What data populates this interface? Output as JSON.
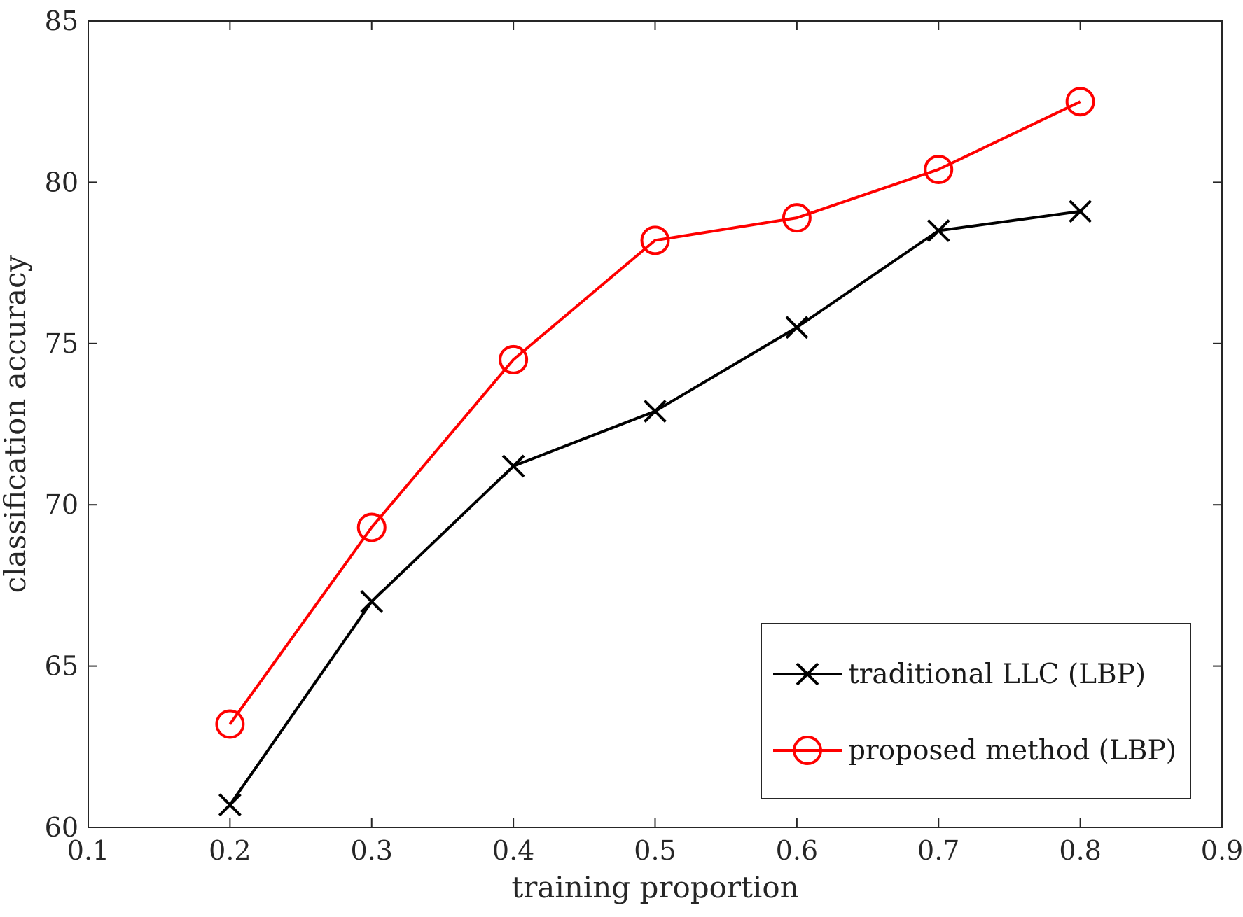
{
  "chart_data": {
    "type": "line",
    "title": "",
    "xlabel": "training proportion",
    "ylabel": "classification accuracy",
    "xlim": [
      0.1,
      0.9
    ],
    "ylim": [
      60,
      85
    ],
    "xticks": [
      0.1,
      0.2,
      0.3,
      0.4,
      0.5,
      0.6,
      0.7,
      0.8,
      0.9
    ],
    "yticks": [
      60,
      65,
      70,
      75,
      80,
      85
    ],
    "xtick_labels": [
      "0.1",
      "0.2",
      "0.3",
      "0.4",
      "0.5",
      "0.6",
      "0.7",
      "0.8",
      "0.9"
    ],
    "ytick_labels": [
      "60",
      "65",
      "70",
      "75",
      "80",
      "85"
    ],
    "grid": false,
    "legend_position": "bottom-right",
    "x": [
      0.2,
      0.3,
      0.4,
      0.5,
      0.6,
      0.7,
      0.8
    ],
    "series": [
      {
        "name": "traditional LLC (LBP)",
        "marker": "x",
        "color": "#000000",
        "values": [
          60.7,
          67.0,
          71.2,
          72.9,
          75.5,
          78.5,
          79.1
        ]
      },
      {
        "name": "proposed method (LBP)",
        "marker": "o",
        "color": "#ff0000",
        "values": [
          63.2,
          69.3,
          74.5,
          78.2,
          78.9,
          80.4,
          82.5
        ]
      }
    ]
  }
}
